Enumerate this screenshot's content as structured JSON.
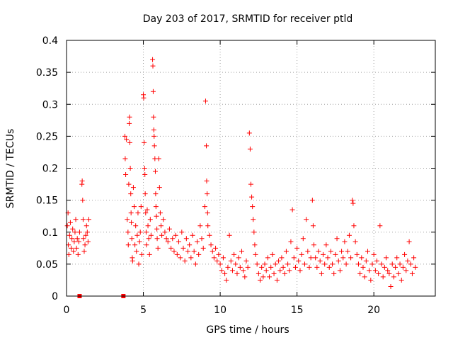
{
  "chart_data": {
    "type": "scatter",
    "title": "Day 203 of 2017, SRMTID for receiver ptld",
    "xlabel": "GPS time / hours",
    "ylabel": "SRMTID / TECUs",
    "xlim": [
      0,
      24
    ],
    "ylim": [
      0,
      0.4
    ],
    "xticks": [
      0,
      5,
      10,
      15,
      20
    ],
    "xtick_labels": [
      "0",
      "5",
      "10",
      "15",
      "20"
    ],
    "yticks": [
      0,
      0.05,
      0.1,
      0.15,
      0.2,
      0.25,
      0.3,
      0.35,
      0.4
    ],
    "ytick_labels": [
      "0",
      "0.05",
      "0.1",
      "0.15",
      "0.2",
      "0.25",
      "0.3",
      "0.35",
      "0.4"
    ],
    "grid": true,
    "legend": "none",
    "marker": "plus",
    "color": "#ff0000",
    "outage_markers_x": [
      0.85,
      3.7
    ],
    "series": [
      {
        "values": [
          [
            0.05,
            0.11
          ],
          [
            0.1,
            0.13
          ],
          [
            0.12,
            0.08
          ],
          [
            0.15,
            0.065
          ],
          [
            0.2,
            0.095
          ],
          [
            0.25,
            0.115
          ],
          [
            0.3,
            0.075
          ],
          [
            0.35,
            0.09
          ],
          [
            0.4,
            0.105
          ],
          [
            0.45,
            0.07
          ],
          [
            0.5,
            0.085
          ],
          [
            0.55,
            0.1
          ],
          [
            0.6,
            0.12
          ],
          [
            0.65,
            0.075
          ],
          [
            0.7,
            0.09
          ],
          [
            0.75,
            0.065
          ],
          [
            0.8,
            0.085
          ],
          [
            0.85,
            0.1
          ],
          [
            1.0,
            0.175
          ],
          [
            1.02,
            0.18
          ],
          [
            1.05,
            0.15
          ],
          [
            1.08,
            0.12
          ],
          [
            1.1,
            0.09
          ],
          [
            1.15,
            0.07
          ],
          [
            1.2,
            0.08
          ],
          [
            1.25,
            0.095
          ],
          [
            1.3,
            0.11
          ],
          [
            1.35,
            0.1
          ],
          [
            1.4,
            0.085
          ],
          [
            1.45,
            0.12
          ],
          [
            3.8,
            0.25
          ],
          [
            3.82,
            0.215
          ],
          [
            3.85,
            0.19
          ],
          [
            3.9,
            0.245
          ],
          [
            3.95,
            0.12
          ],
          [
            4.0,
            0.1
          ],
          [
            4.02,
            0.08
          ],
          [
            4.05,
            0.175
          ],
          [
            4.08,
            0.27
          ],
          [
            4.1,
            0.28
          ],
          [
            4.12,
            0.24
          ],
          [
            4.15,
            0.2
          ],
          [
            4.18,
            0.16
          ],
          [
            4.2,
            0.13
          ],
          [
            4.22,
            0.115
          ],
          [
            4.25,
            0.09
          ],
          [
            4.28,
            0.06
          ],
          [
            4.3,
            0.055
          ],
          [
            4.35,
            0.17
          ],
          [
            4.4,
            0.14
          ],
          [
            4.45,
            0.08
          ],
          [
            4.5,
            0.11
          ],
          [
            4.55,
            0.07
          ],
          [
            4.6,
            0.095
          ],
          [
            4.65,
            0.13
          ],
          [
            4.7,
            0.05
          ],
          [
            4.75,
            0.085
          ],
          [
            4.8,
            0.1
          ],
          [
            4.85,
            0.14
          ],
          [
            4.9,
            0.065
          ],
          [
            5.0,
            0.315
          ],
          [
            5.02,
            0.31
          ],
          [
            5.05,
            0.24
          ],
          [
            5.08,
            0.2
          ],
          [
            5.1,
            0.19
          ],
          [
            5.12,
            0.16
          ],
          [
            5.15,
            0.13
          ],
          [
            5.18,
            0.1
          ],
          [
            5.2,
            0.08
          ],
          [
            5.25,
            0.135
          ],
          [
            5.3,
            0.11
          ],
          [
            5.35,
            0.09
          ],
          [
            5.4,
            0.065
          ],
          [
            5.45,
            0.12
          ],
          [
            5.5,
            0.095
          ],
          [
            5.6,
            0.37
          ],
          [
            5.62,
            0.36
          ],
          [
            5.64,
            0.32
          ],
          [
            5.66,
            0.28
          ],
          [
            5.68,
            0.26
          ],
          [
            5.7,
            0.25
          ],
          [
            5.72,
            0.235
          ],
          [
            5.75,
            0.215
          ],
          [
            5.78,
            0.195
          ],
          [
            5.8,
            0.16
          ],
          [
            5.82,
            0.14
          ],
          [
            5.85,
            0.125
          ],
          [
            5.88,
            0.105
          ],
          [
            5.9,
            0.09
          ],
          [
            5.95,
            0.075
          ],
          [
            6.0,
            0.215
          ],
          [
            6.05,
            0.17
          ],
          [
            6.1,
            0.13
          ],
          [
            6.15,
            0.11
          ],
          [
            6.2,
            0.095
          ],
          [
            6.3,
            0.12
          ],
          [
            6.4,
            0.1
          ],
          [
            6.5,
            0.09
          ],
          [
            6.6,
            0.085
          ],
          [
            6.7,
            0.105
          ],
          [
            6.8,
            0.075
          ],
          [
            6.9,
            0.09
          ],
          [
            7.0,
            0.07
          ],
          [
            7.1,
            0.095
          ],
          [
            7.2,
            0.065
          ],
          [
            7.3,
            0.085
          ],
          [
            7.4,
            0.06
          ],
          [
            7.5,
            0.1
          ],
          [
            7.6,
            0.075
          ],
          [
            7.7,
            0.055
          ],
          [
            7.8,
            0.09
          ],
          [
            7.9,
            0.07
          ],
          [
            8.0,
            0.08
          ],
          [
            8.1,
            0.06
          ],
          [
            8.2,
            0.095
          ],
          [
            8.3,
            0.07
          ],
          [
            8.4,
            0.05
          ],
          [
            8.5,
            0.085
          ],
          [
            8.6,
            0.065
          ],
          [
            8.7,
            0.11
          ],
          [
            8.8,
            0.09
          ],
          [
            8.9,
            0.075
          ],
          [
            9.0,
            0.14
          ],
          [
            9.05,
            0.305
          ],
          [
            9.1,
            0.235
          ],
          [
            9.12,
            0.18
          ],
          [
            9.15,
            0.16
          ],
          [
            9.18,
            0.13
          ],
          [
            9.2,
            0.11
          ],
          [
            9.3,
            0.095
          ],
          [
            9.4,
            0.08
          ],
          [
            9.5,
            0.07
          ],
          [
            9.6,
            0.06
          ],
          [
            9.7,
            0.075
          ],
          [
            9.8,
            0.055
          ],
          [
            9.9,
            0.065
          ],
          [
            10.0,
            0.05
          ],
          [
            10.1,
            0.04
          ],
          [
            10.2,
            0.06
          ],
          [
            10.3,
            0.035
          ],
          [
            10.4,
            0.025
          ],
          [
            10.5,
            0.045
          ],
          [
            10.6,
            0.095
          ],
          [
            10.7,
            0.055
          ],
          [
            10.8,
            0.04
          ],
          [
            10.9,
            0.065
          ],
          [
            11.0,
            0.05
          ],
          [
            11.1,
            0.035
          ],
          [
            11.2,
            0.06
          ],
          [
            11.3,
            0.045
          ],
          [
            11.4,
            0.07
          ],
          [
            11.5,
            0.04
          ],
          [
            11.6,
            0.03
          ],
          [
            11.7,
            0.055
          ],
          [
            11.8,
            0.045
          ],
          [
            11.9,
            0.255
          ],
          [
            11.95,
            0.23
          ],
          [
            12.0,
            0.175
          ],
          [
            12.05,
            0.155
          ],
          [
            12.1,
            0.14
          ],
          [
            12.15,
            0.12
          ],
          [
            12.2,
            0.1
          ],
          [
            12.25,
            0.08
          ],
          [
            12.3,
            0.065
          ],
          [
            12.4,
            0.05
          ],
          [
            12.5,
            0.035
          ],
          [
            12.6,
            0.025
          ],
          [
            12.7,
            0.045
          ],
          [
            12.8,
            0.03
          ],
          [
            12.9,
            0.05
          ],
          [
            13.0,
            0.04
          ],
          [
            13.1,
            0.06
          ],
          [
            13.2,
            0.03
          ],
          [
            13.3,
            0.045
          ],
          [
            13.4,
            0.065
          ],
          [
            13.5,
            0.035
          ],
          [
            13.6,
            0.05
          ],
          [
            13.7,
            0.025
          ],
          [
            13.8,
            0.055
          ],
          [
            13.9,
            0.04
          ],
          [
            14.0,
            0.06
          ],
          [
            14.1,
            0.045
          ],
          [
            14.2,
            0.035
          ],
          [
            14.3,
            0.07
          ],
          [
            14.4,
            0.05
          ],
          [
            14.5,
            0.04
          ],
          [
            14.6,
            0.085
          ],
          [
            14.7,
            0.135
          ],
          [
            14.8,
            0.06
          ],
          [
            14.9,
            0.045
          ],
          [
            15.0,
            0.075
          ],
          [
            15.1,
            0.055
          ],
          [
            15.2,
            0.04
          ],
          [
            15.3,
            0.065
          ],
          [
            15.4,
            0.09
          ],
          [
            15.5,
            0.05
          ],
          [
            15.6,
            0.12
          ],
          [
            15.7,
            0.07
          ],
          [
            15.8,
            0.045
          ],
          [
            15.9,
            0.06
          ],
          [
            16.0,
            0.15
          ],
          [
            16.05,
            0.11
          ],
          [
            16.1,
            0.08
          ],
          [
            16.2,
            0.06
          ],
          [
            16.3,
            0.045
          ],
          [
            16.4,
            0.07
          ],
          [
            16.5,
            0.055
          ],
          [
            16.6,
            0.035
          ],
          [
            16.7,
            0.065
          ],
          [
            16.8,
            0.05
          ],
          [
            16.9,
            0.08
          ],
          [
            17.0,
            0.06
          ],
          [
            17.1,
            0.045
          ],
          [
            17.2,
            0.07
          ],
          [
            17.3,
            0.05
          ],
          [
            17.4,
            0.035
          ],
          [
            17.5,
            0.065
          ],
          [
            17.6,
            0.09
          ],
          [
            17.7,
            0.055
          ],
          [
            17.8,
            0.04
          ],
          [
            17.9,
            0.07
          ],
          [
            18.0,
            0.06
          ],
          [
            18.1,
            0.085
          ],
          [
            18.2,
            0.05
          ],
          [
            18.3,
            0.07
          ],
          [
            18.4,
            0.095
          ],
          [
            18.5,
            0.06
          ],
          [
            18.6,
            0.15
          ],
          [
            18.65,
            0.145
          ],
          [
            18.7,
            0.11
          ],
          [
            18.8,
            0.085
          ],
          [
            18.9,
            0.065
          ],
          [
            19.0,
            0.05
          ],
          [
            19.1,
            0.035
          ],
          [
            19.2,
            0.06
          ],
          [
            19.3,
            0.045
          ],
          [
            19.4,
            0.03
          ],
          [
            19.5,
            0.055
          ],
          [
            19.6,
            0.07
          ],
          [
            19.7,
            0.04
          ],
          [
            19.8,
            0.025
          ],
          [
            19.9,
            0.05
          ],
          [
            20.0,
            0.065
          ],
          [
            20.1,
            0.04
          ],
          [
            20.2,
            0.055
          ],
          [
            20.3,
            0.035
          ],
          [
            20.4,
            0.11
          ],
          [
            20.5,
            0.05
          ],
          [
            20.6,
            0.03
          ],
          [
            20.7,
            0.045
          ],
          [
            20.8,
            0.06
          ],
          [
            20.9,
            0.04
          ],
          [
            21.0,
            0.035
          ],
          [
            21.1,
            0.015
          ],
          [
            21.2,
            0.05
          ],
          [
            21.3,
            0.03
          ],
          [
            21.4,
            0.045
          ],
          [
            21.5,
            0.06
          ],
          [
            21.6,
            0.035
          ],
          [
            21.7,
            0.05
          ],
          [
            21.8,
            0.025
          ],
          [
            21.9,
            0.045
          ],
          [
            22.0,
            0.065
          ],
          [
            22.1,
            0.04
          ],
          [
            22.2,
            0.055
          ],
          [
            22.3,
            0.085
          ],
          [
            22.4,
            0.05
          ],
          [
            22.5,
            0.035
          ],
          [
            22.6,
            0.06
          ],
          [
            22.7,
            0.045
          ]
        ]
      }
    ]
  }
}
